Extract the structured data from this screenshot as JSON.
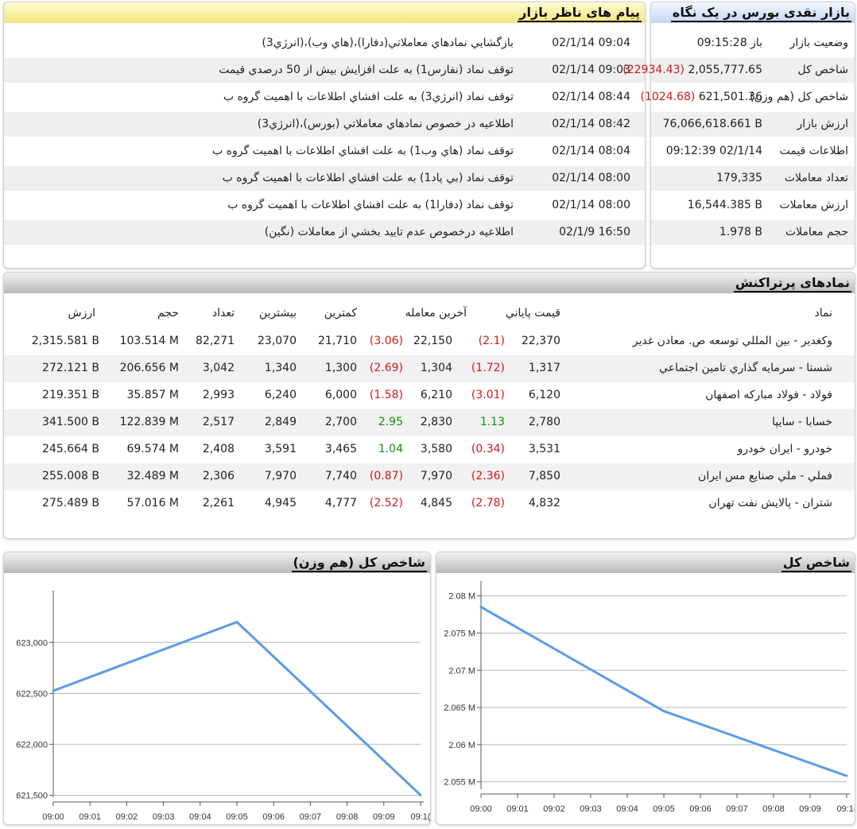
{
  "messages": {
    "title": "پیام های ناظر بازار",
    "items": [
      {
        "time": "02/1/14 09:04",
        "text": "بازگشايي نمادهاي معاملاتي(دفارا)،(هاي وب)،(انرژي3)"
      },
      {
        "time": "02/1/14 09:03",
        "text": "توقف نماد (نفارس1) به علت افزايش بيش از 50 درصدي قيمت"
      },
      {
        "time": "02/1/14 08:44",
        "text": "توقف نماد (انرژي3) به علت افشاي اطلاعات با اهميت گروه ب"
      },
      {
        "time": "02/1/14 08:42",
        "text": "اطلاعيه در خصوص نمادهاي معاملاتي (بورس)،(انرژي3)"
      },
      {
        "time": "02/1/14 08:04",
        "text": "توقف نماد (هاي وب1) به علت افشاي اطلاعات با اهميت گروه ب"
      },
      {
        "time": "02/1/14 08:00",
        "text": "توقف نماد (بي پاد1) به علت افشاي اطلاعات با اهميت گروه ب"
      },
      {
        "time": "02/1/14 08:00",
        "text": "توقف نماد (دفارا1) به علت افشاي اطلاعات با اهميت گروه ب"
      },
      {
        "time": "02/1/9 16:50",
        "text": "اطلاعيه درخصوص عدم تاييد بخشي از معاملات (نگين)"
      }
    ]
  },
  "overview": {
    "title": "بازار نقدی بورس در یک نگاه",
    "items": [
      {
        "label": "وضعيت بازار",
        "value": "باز 09:15:28",
        "change": ""
      },
      {
        "label": "شاخص کل",
        "value": "2,055,777.65",
        "change": "(22934.43)"
      },
      {
        "label": "شاخص کل (هم وزن)",
        "value": "621,501.36",
        "change": "(1024.68)"
      },
      {
        "label": "ارزش بازار",
        "value": "76,066,618.661 B",
        "change": ""
      },
      {
        "label": "اطلاعات قيمت",
        "value": "09:12:39 02/1/14",
        "change": ""
      },
      {
        "label": "تعداد معاملات",
        "value": "179,335",
        "change": ""
      },
      {
        "label": "ارزش معاملات",
        "value": "16,544.385 B",
        "change": ""
      },
      {
        "label": "حجم معاملات",
        "value": "1.978 B",
        "change": ""
      }
    ]
  },
  "active": {
    "title": "نمادهای پرتراکنش",
    "headers": {
      "name": "نماد",
      "close": "قيمت پاياني",
      "last": "آخرين معامله",
      "low": "کمترين",
      "high": "بيشترين",
      "count": "تعداد",
      "volume": "حجم",
      "value": "ارزش"
    },
    "rows": [
      {
        "name": "وكغدير - بين المللي توسعه ص. معادن غدير",
        "close": "22,370",
        "close_chg": "(2.1)",
        "close_neg": true,
        "last": "22,150",
        "last_chg": "(3.06)",
        "last_neg": true,
        "low": "21,710",
        "high": "23,070",
        "count": "82,271",
        "volume": "103.514 M",
        "value": "2,315.581 B"
      },
      {
        "name": "شستا - سرمايه گذاري تامين اجتماعي",
        "close": "1,317",
        "close_chg": "(1.72)",
        "close_neg": true,
        "last": "1,304",
        "last_chg": "(2.69)",
        "last_neg": true,
        "low": "1,300",
        "high": "1,340",
        "count": "3,042",
        "volume": "206.656 M",
        "value": "272.121 B"
      },
      {
        "name": "فولاد - فولاد مباركه اصفهان",
        "close": "6,120",
        "close_chg": "(3.01)",
        "close_neg": true,
        "last": "6,210",
        "last_chg": "(1.58)",
        "last_neg": true,
        "low": "6,000",
        "high": "6,240",
        "count": "2,993",
        "volume": "35.857 M",
        "value": "219.351 B"
      },
      {
        "name": "خسابا - سايپا",
        "close": "2,780",
        "close_chg": "1.13",
        "close_neg": false,
        "last": "2,830",
        "last_chg": "2.95",
        "last_neg": false,
        "low": "2,700",
        "high": "2,849",
        "count": "2,517",
        "volume": "122.839 M",
        "value": "341.500 B"
      },
      {
        "name": "خودرو - ايران خودرو",
        "close": "3,531",
        "close_chg": "(0.34)",
        "close_neg": true,
        "last": "3,580",
        "last_chg": "1.04",
        "last_neg": false,
        "low": "3,465",
        "high": "3,591",
        "count": "2,408",
        "volume": "69.574 M",
        "value": "245.664 B"
      },
      {
        "name": "فملي - ملي صنايع مس ايران",
        "close": "7,850",
        "close_chg": "(2.36)",
        "close_neg": true,
        "last": "7,970",
        "last_chg": "(0.87)",
        "last_neg": true,
        "low": "7,740",
        "high": "7,970",
        "count": "2,306",
        "volume": "32.489 M",
        "value": "255.008 B"
      },
      {
        "name": "شتران - پالايش نفت تهران",
        "close": "4,832",
        "close_chg": "(2.78)",
        "close_neg": true,
        "last": "4,845",
        "last_chg": "(2.52)",
        "last_neg": true,
        "low": "4,777",
        "high": "4,945",
        "count": "2,261",
        "volume": "57.016 M",
        "value": "275.489 B"
      }
    ]
  },
  "colors": {
    "negative": "#d01818",
    "positive": "#109010",
    "line": "#5a9be8",
    "grid": "#bbbbbb"
  },
  "chart_data": [
    {
      "type": "line",
      "title": "شاخص کل (هم وزن)",
      "x": [
        "09:00",
        "09:01",
        "09:02",
        "09:03",
        "09:04",
        "09:05",
        "09:06",
        "09:07",
        "09:08",
        "09:09",
        "09:10"
      ],
      "x_tick_labels": [
        "09:00",
        "09:01",
        "09:02",
        "09:03",
        "09:04",
        "09:05",
        "09:06",
        "09:07",
        "09:08",
        "09:09",
        "09:1("
      ],
      "series": [
        {
          "points": [
            [
              "09:00",
              622525
            ],
            [
              "09:05",
              623200
            ],
            [
              "09:10",
              621501
            ]
          ]
        }
      ],
      "yticks": [
        621500,
        622000,
        622500,
        623000
      ],
      "ytick_labels": [
        "621,500",
        "622,000",
        "622,500",
        "623,000"
      ],
      "ylim": [
        621480,
        623400
      ],
      "grid": true
    },
    {
      "type": "line",
      "title": "شاخص کل",
      "x": [
        "09:00",
        "09:01",
        "09:02",
        "09:03",
        "09:04",
        "09:05",
        "09:06",
        "09:07",
        "09:08",
        "09:09",
        "09:10"
      ],
      "x_tick_labels": [
        "09:00",
        "09:01",
        "09:02",
        "09:03",
        "09:04",
        "09:05",
        "09:06",
        "09:07",
        "09:08",
        "09:09",
        "09:1("
      ],
      "series": [
        {
          "points": [
            [
              "09:00",
              2078500
            ],
            [
              "09:05",
              2064500
            ],
            [
              "09:10",
              2055800
            ]
          ]
        }
      ],
      "yticks": [
        2055000,
        2060000,
        2065000,
        2070000,
        2075000,
        2080000
      ],
      "ytick_labels": [
        "2.055 M",
        "2.06 M",
        "2.065 M",
        "2.07 M",
        "2.075 M",
        "2.08 M"
      ],
      "ylim": [
        2054000,
        2080500
      ],
      "grid": true
    }
  ]
}
